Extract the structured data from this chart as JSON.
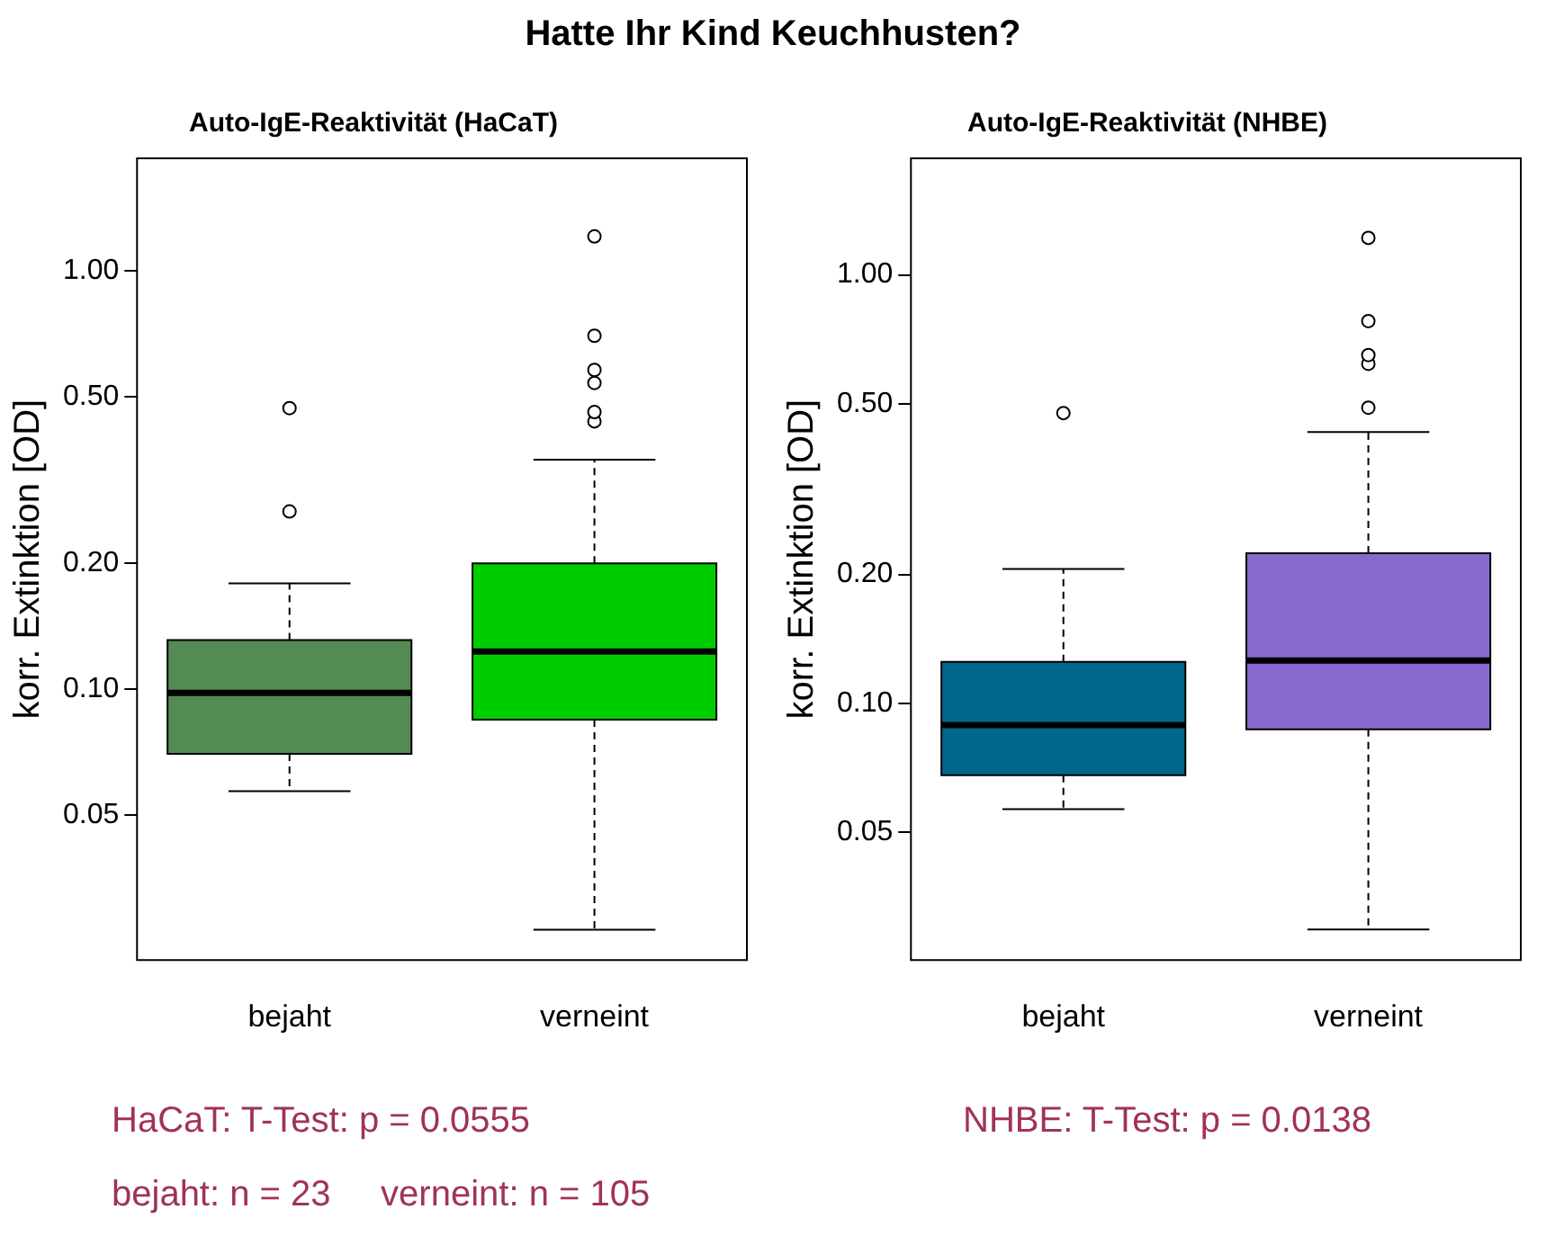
{
  "chart_data": [
    {
      "type": "box",
      "title": "Hatte Ihr Kind Keuchhusten?",
      "subtitle": "Auto-IgE-Reaktivität (HaCaT)",
      "ylabel": "korr. Extinktion [OD]",
      "categories": [
        "bejaht",
        "verneint"
      ],
      "series": [
        {
          "colors": [
            "#548b54",
            "#00cd00"
          ],
          "boxes": [
            {
              "low": 0.057,
              "q1": 0.07,
              "median": 0.098,
              "q3": 0.131,
              "high": 0.179,
              "outliers": [
                0.47,
                0.266
              ]
            },
            {
              "low": 0.0266,
              "q1": 0.0845,
              "median": 0.123,
              "q3": 0.2,
              "high": 0.354,
              "outliers": [
                1.21,
                0.7,
                0.58,
                0.54,
                0.46,
                0.437
              ]
            }
          ]
        }
      ],
      "log": "y",
      "ylim": [
        0.0225,
        1.86
      ],
      "yticks": [
        {
          "value": 0.05,
          "label": "0.05"
        },
        {
          "value": 0.1,
          "label": "0.10"
        },
        {
          "value": 0.2,
          "label": "0.20"
        },
        {
          "value": 0.5,
          "label": "0.50"
        },
        {
          "value": 1,
          "label": "1.00"
        }
      ],
      "grid": false,
      "annotations": [
        "HaCaT: T-Test: p = 0.0555",
        "bejaht: n = 23     verneint: n = 105"
      ]
    },
    {
      "type": "box",
      "title": "Auto-IgE-Reaktivität (NHBE)",
      "ylabel": "korr. Extinktion [OD]",
      "categories": [
        "bejaht",
        "verneint"
      ],
      "series": [
        {
          "colors": [
            "#00688b",
            "#8968cd"
          ],
          "boxes": [
            {
              "low": 0.0567,
              "q1": 0.068,
              "median": 0.089,
              "q3": 0.125,
              "high": 0.206,
              "outliers": [
                0.476
              ]
            },
            {
              "low": 0.0297,
              "q1": 0.087,
              "median": 0.126,
              "q3": 0.224,
              "high": 0.43,
              "outliers": [
                1.22,
                0.78,
                0.65,
                0.62,
                0.49
              ]
            }
          ]
        }
      ],
      "log": "y",
      "ylim": [
        0.0252,
        1.87
      ],
      "yticks": [
        {
          "value": 0.05,
          "label": "0.05"
        },
        {
          "value": 0.1,
          "label": "0.10"
        },
        {
          "value": 0.2,
          "label": "0.20"
        },
        {
          "value": 0.5,
          "label": "0.50"
        },
        {
          "value": 1,
          "label": "1.00"
        }
      ],
      "grid": false,
      "annotations": [
        "NHBE: T-Test: p = 0.0138"
      ]
    }
  ]
}
